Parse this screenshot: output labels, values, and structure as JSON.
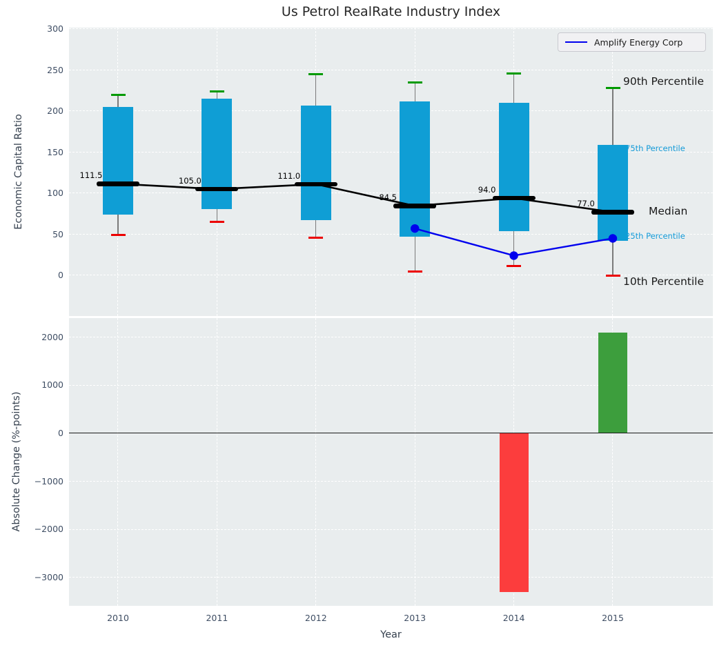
{
  "chart_data": [
    {
      "type": "boxplot+line",
      "subplot": "top",
      "title": "Us Petrol RealRate Industry Index",
      "ylabel": "Economic Capital Ratio",
      "ylim": [
        -50,
        302
      ],
      "yticks": [
        0,
        50,
        100,
        150,
        200,
        250,
        300
      ],
      "grid": true,
      "categories": [
        "2010",
        "2011",
        "2012",
        "2013",
        "2014",
        "2015"
      ],
      "series": [
        {
          "name": "90th Percentile",
          "values": [
            220,
            224,
            245,
            235,
            246,
            228
          ]
        },
        {
          "name": "75th Percentile",
          "values": [
            205,
            215,
            207,
            212,
            210,
            159
          ]
        },
        {
          "name": "Median",
          "values": [
            111.5,
            105.0,
            111.0,
            84.5,
            94.0,
            77.0
          ]
        },
        {
          "name": "25th Percentile",
          "values": [
            74,
            81,
            67,
            47,
            54,
            42
          ]
        },
        {
          "name": "10th Percentile",
          "values": [
            49,
            65,
            46,
            5,
            11,
            0
          ]
        },
        {
          "name": "Amplify Energy Corp",
          "values": [
            null,
            null,
            null,
            57,
            24,
            45
          ]
        }
      ],
      "median_labels": [
        "111.5",
        "105.0",
        "111.0",
        "84.5",
        "94.0",
        "77.0"
      ],
      "annotations": [
        {
          "text": "90th Percentile",
          "size": "large"
        },
        {
          "text": "75th Percentile",
          "size": "small"
        },
        {
          "text": "Median",
          "size": "large"
        },
        {
          "text": "25th Percentile",
          "size": "small"
        },
        {
          "text": "10th Percentile",
          "size": "large"
        }
      ],
      "legend": {
        "position": "upper right",
        "entries": [
          "Amplify Energy Corp"
        ]
      }
    },
    {
      "type": "bar",
      "subplot": "bottom",
      "ylabel": "Absolute Change (%-points)",
      "xlabel": "Year",
      "ylim": [
        -3590,
        2410
      ],
      "yticks": [
        2000,
        1000,
        0,
        -1000,
        -2000,
        -3000
      ],
      "grid": true,
      "categories": [
        "2010",
        "2011",
        "2012",
        "2013",
        "2014",
        "2015"
      ],
      "values": [
        null,
        null,
        null,
        null,
        -3300,
        2100
      ]
    }
  ],
  "colors": {
    "box_fill": "#0f9ed5",
    "whisker": "#7a7a7a",
    "cap_high": "#009a00",
    "cap_low": "#ec0000",
    "median_line": "#000000",
    "amplify_line": "#0000ee",
    "bar_negative": "#fc3d3d",
    "bar_positive": "#3d9e3d",
    "plot_bg": "#e9edee",
    "gridline": "#ffffff",
    "zero_line": "#1a1a1a",
    "tick_label": "#3e4d63",
    "annotation_small": "#149bd8"
  }
}
